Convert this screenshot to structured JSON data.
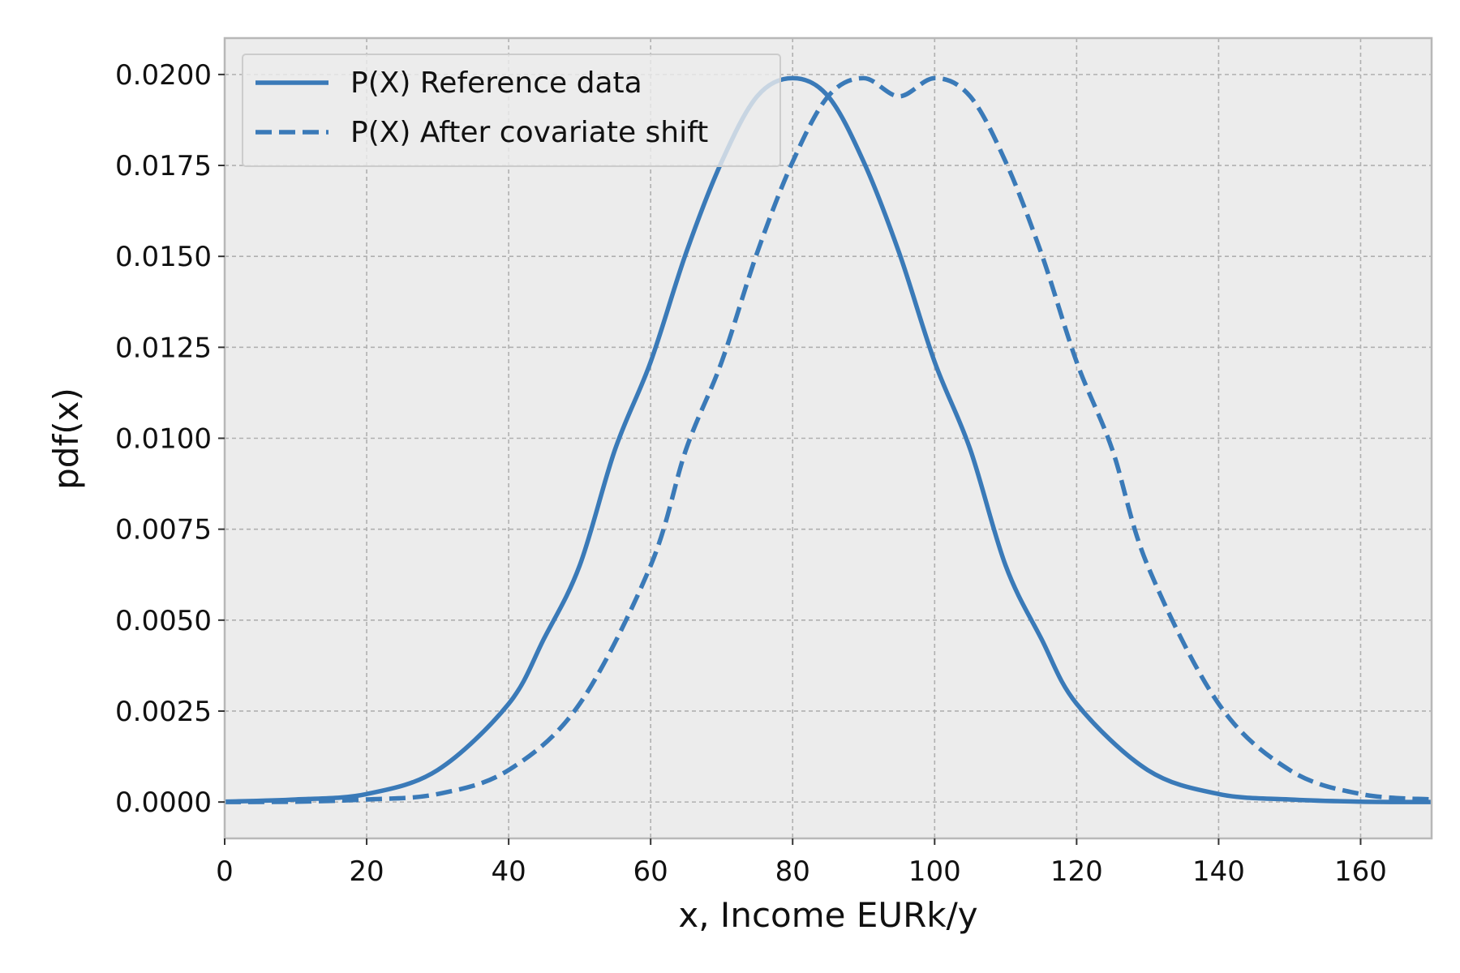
{
  "chart_data": {
    "type": "line",
    "title": "",
    "xlabel": "x, Income EURk/y",
    "ylabel": "pdf(x)",
    "xlim": [
      0,
      170
    ],
    "ylim": [
      -0.001,
      0.021
    ],
    "xticks": [
      0,
      20,
      40,
      60,
      80,
      100,
      120,
      140,
      160
    ],
    "xtick_labels": [
      "0",
      "20",
      "40",
      "60",
      "80",
      "100",
      "120",
      "140",
      "160"
    ],
    "yticks": [
      0,
      0.0025,
      0.005,
      0.0075,
      0.01,
      0.0125,
      0.015,
      0.0175,
      0.02
    ],
    "ytick_labels": [
      "0.0000",
      "0.0025",
      "0.0050",
      "0.0075",
      "0.0100",
      "0.0125",
      "0.0150",
      "0.0175",
      "0.0200"
    ],
    "grid": true,
    "legend_position": "top-left",
    "background": "#ececec",
    "series": [
      {
        "name": "P(X) Reference data",
        "style": "solid",
        "color": "#3a7ab8",
        "x": [
          0,
          10,
          20,
          30,
          40,
          45,
          50,
          55,
          60,
          65,
          70,
          75,
          80,
          85,
          90,
          95,
          100,
          105,
          110,
          115,
          120,
          130,
          140,
          150,
          160,
          170
        ],
        "y": [
          1e-05,
          7e-05,
          0.00022,
          0.00088,
          0.0027,
          0.0045,
          0.0065,
          0.0097,
          0.0121,
          0.0151,
          0.0176,
          0.0194,
          0.0199,
          0.0194,
          0.0176,
          0.0151,
          0.0121,
          0.0097,
          0.0065,
          0.0045,
          0.0027,
          0.00088,
          0.00022,
          7e-05,
          1e-05,
          0.0
        ]
      },
      {
        "name": "P(X) After covariate shift",
        "style": "dashed",
        "color": "#3a7ab8",
        "x": [
          0,
          10,
          20,
          30,
          40,
          50,
          60,
          65,
          70,
          75,
          80,
          85,
          90,
          95,
          100,
          105,
          110,
          115,
          120,
          125,
          130,
          140,
          150,
          160,
          170
        ],
        "y": [
          0.0,
          1e-05,
          7e-05,
          0.00022,
          0.00088,
          0.0027,
          0.0065,
          0.0097,
          0.0121,
          0.0151,
          0.0176,
          0.0194,
          0.0199,
          0.0194,
          0.0199,
          0.0194,
          0.0176,
          0.0151,
          0.0121,
          0.0097,
          0.0065,
          0.0027,
          0.00088,
          0.00022,
          7e-05
        ]
      }
    ]
  }
}
